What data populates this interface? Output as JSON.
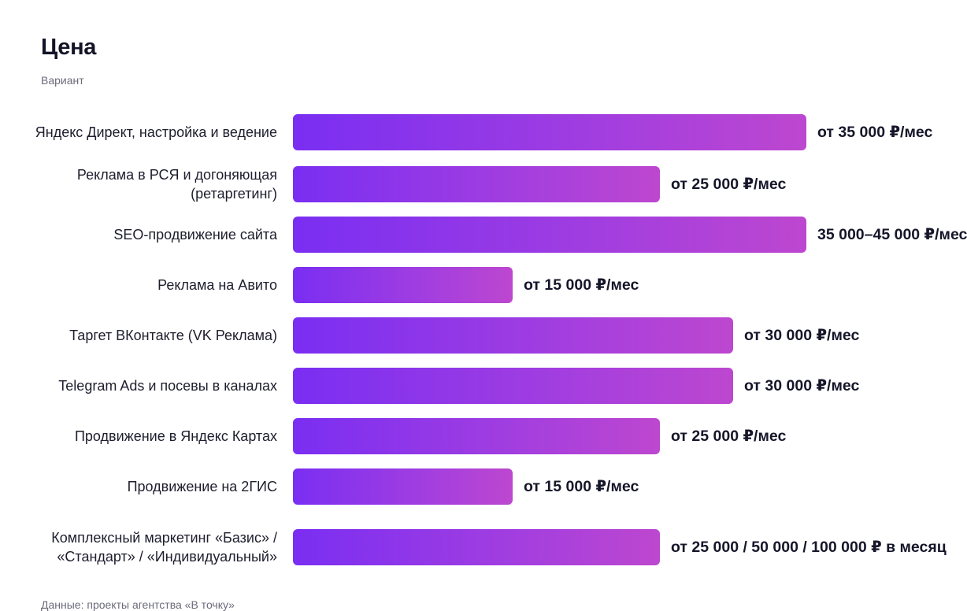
{
  "chart_data": {
    "type": "bar",
    "orientation": "horizontal",
    "title": "Цена",
    "subtitle": "Вариант",
    "source": "Данные: проекты агентства «В точку»",
    "xlim": [
      0,
      35000
    ],
    "grid": false,
    "legend": "none",
    "colors": {
      "bar_start": "#7a2ef2",
      "bar_end": "#bd47cf",
      "text": "#16162a",
      "muted": "#6b6b7b"
    },
    "categories": [
      "Яндекс Директ, настройка и ведение",
      "Реклама в РСЯ и догоняющая (ретаргетинг)",
      "SEO-продвижение сайта",
      "Реклама на Авито",
      "Таргет ВКонтакте (VK Реклама)",
      "Telegram Ads и посевы в каналах",
      "Продвижение в Яндекс Картах",
      "Продвижение на 2ГИС",
      "Комплексный маркетинг «Базис» / «Стандарт» / «Индивидуальный»"
    ],
    "values": [
      35000,
      25000,
      35000,
      15000,
      30000,
      30000,
      25000,
      15000,
      25000
    ],
    "value_labels": [
      "от 35 000 ₽/мес",
      "от 25 000 ₽/мес",
      "35 000–45 000 ₽/мес",
      "от 15 000 ₽/мес",
      "от 30 000 ₽/мес",
      "от 30 000 ₽/мес",
      "от 25 000 ₽/мес",
      "от 15 000 ₽/мес",
      "от 25 000 / 50 000 / 100 000 ₽ в месяц"
    ]
  }
}
